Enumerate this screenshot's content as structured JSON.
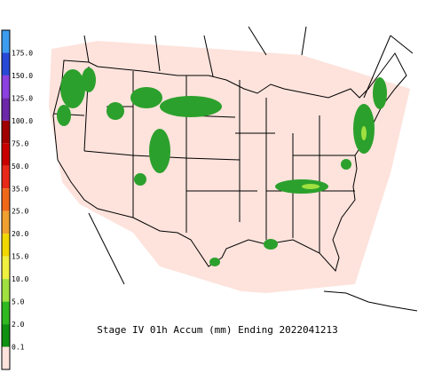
{
  "legend": {
    "labels": [
      "175.0",
      "150.0",
      "125.0",
      "100.0",
      "75.0",
      "50.0",
      "35.0",
      "25.0",
      "20.0",
      "15.0",
      "10.0",
      "5.0",
      "2.0",
      "0.1"
    ],
    "colors": [
      "#3c9cf0",
      "#2848d8",
      "#8c40e0",
      "#6c28a8",
      "#a00000",
      "#c80000",
      "#e82818",
      "#f06818",
      "#f0a030",
      "#f0d800",
      "#f0f040",
      "#a0e040",
      "#30b820",
      "#109010",
      "#fde3dc"
    ]
  },
  "caption": "Stage IV 01h Accum (mm) Ending 2022041213"
}
